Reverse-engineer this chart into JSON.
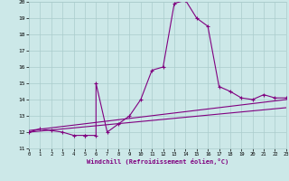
{
  "xlabel": "Windchill (Refroidissement éolien,°C)",
  "bg_color": "#cce8e8",
  "grid_color": "#aacccc",
  "line_color": "#800080",
  "xmin": 0,
  "xmax": 23,
  "ymin": 11,
  "ymax": 20,
  "main_x": [
    0,
    1,
    2,
    3,
    4,
    5,
    5,
    6,
    6,
    7,
    8,
    9,
    10,
    11,
    12,
    13,
    14,
    14,
    15,
    16,
    17,
    18,
    19,
    20,
    21,
    22,
    23
  ],
  "main_y": [
    12.0,
    12.2,
    12.1,
    12.0,
    11.8,
    11.8,
    11.8,
    11.8,
    15.0,
    12.0,
    12.5,
    13.0,
    14.0,
    15.8,
    16.0,
    19.9,
    20.1,
    20.1,
    19.0,
    18.5,
    14.8,
    14.5,
    14.1,
    14.0,
    14.3,
    14.1,
    14.1
  ],
  "line1_x": [
    0,
    23
  ],
  "line1_y": [
    12.0,
    13.5
  ],
  "line2_x": [
    0,
    23
  ],
  "line2_y": [
    12.1,
    14.0
  ]
}
